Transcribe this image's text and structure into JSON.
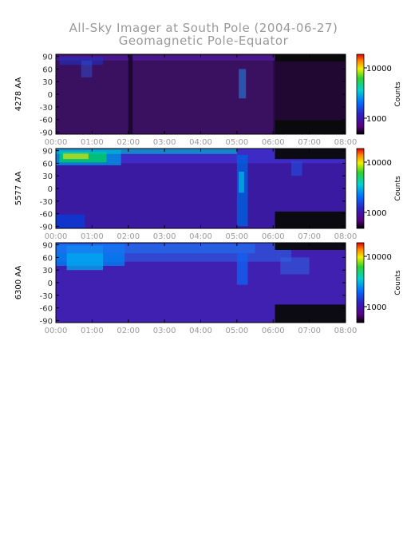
{
  "title": "All-Sky Imager at South Pole (2004-06-27)",
  "subtitle": "Geomagnetic Pole-Equator",
  "chart_data": [
    {
      "type": "heatmap",
      "ylabel": "4278 AA",
      "colorbar_label": "Counts",
      "colorbar_ticks": [
        "10000",
        "1000"
      ],
      "x_ticks": [
        "00:00",
        "01:00",
        "02:00",
        "03:00",
        "04:00",
        "05:00",
        "06:00",
        "07:00",
        "08:00"
      ],
      "y_ticks": [
        "90",
        "60",
        "30",
        "0",
        "-30",
        "-60",
        "-90"
      ],
      "ylim": [
        -95,
        95
      ],
      "xlim_hours": [
        0,
        8
      ]
    },
    {
      "type": "heatmap",
      "ylabel": "5577 AA",
      "colorbar_label": "Counts",
      "colorbar_ticks": [
        "10000",
        "1000"
      ],
      "x_ticks": [
        "00:00",
        "01:00",
        "02:00",
        "03:00",
        "04:00",
        "05:00",
        "06:00",
        "07:00",
        "08:00"
      ],
      "y_ticks": [
        "90",
        "60",
        "30",
        "0",
        "-30",
        "-60",
        "-90"
      ],
      "ylim": [
        -95,
        95
      ],
      "xlim_hours": [
        0,
        8
      ]
    },
    {
      "type": "heatmap",
      "ylabel": "6300 AA",
      "colorbar_label": "Counts",
      "colorbar_ticks": [
        "10000",
        "1000"
      ],
      "x_ticks": [
        "00:00",
        "01:00",
        "02:00",
        "03:00",
        "04:00",
        "05:00",
        "06:00",
        "07:00",
        "08:00"
      ],
      "y_ticks": [
        "90",
        "60",
        "30",
        "0",
        "-30",
        "-60",
        "-90"
      ],
      "ylim": [
        -95,
        95
      ],
      "xlim_hours": [
        0,
        8
      ]
    }
  ]
}
